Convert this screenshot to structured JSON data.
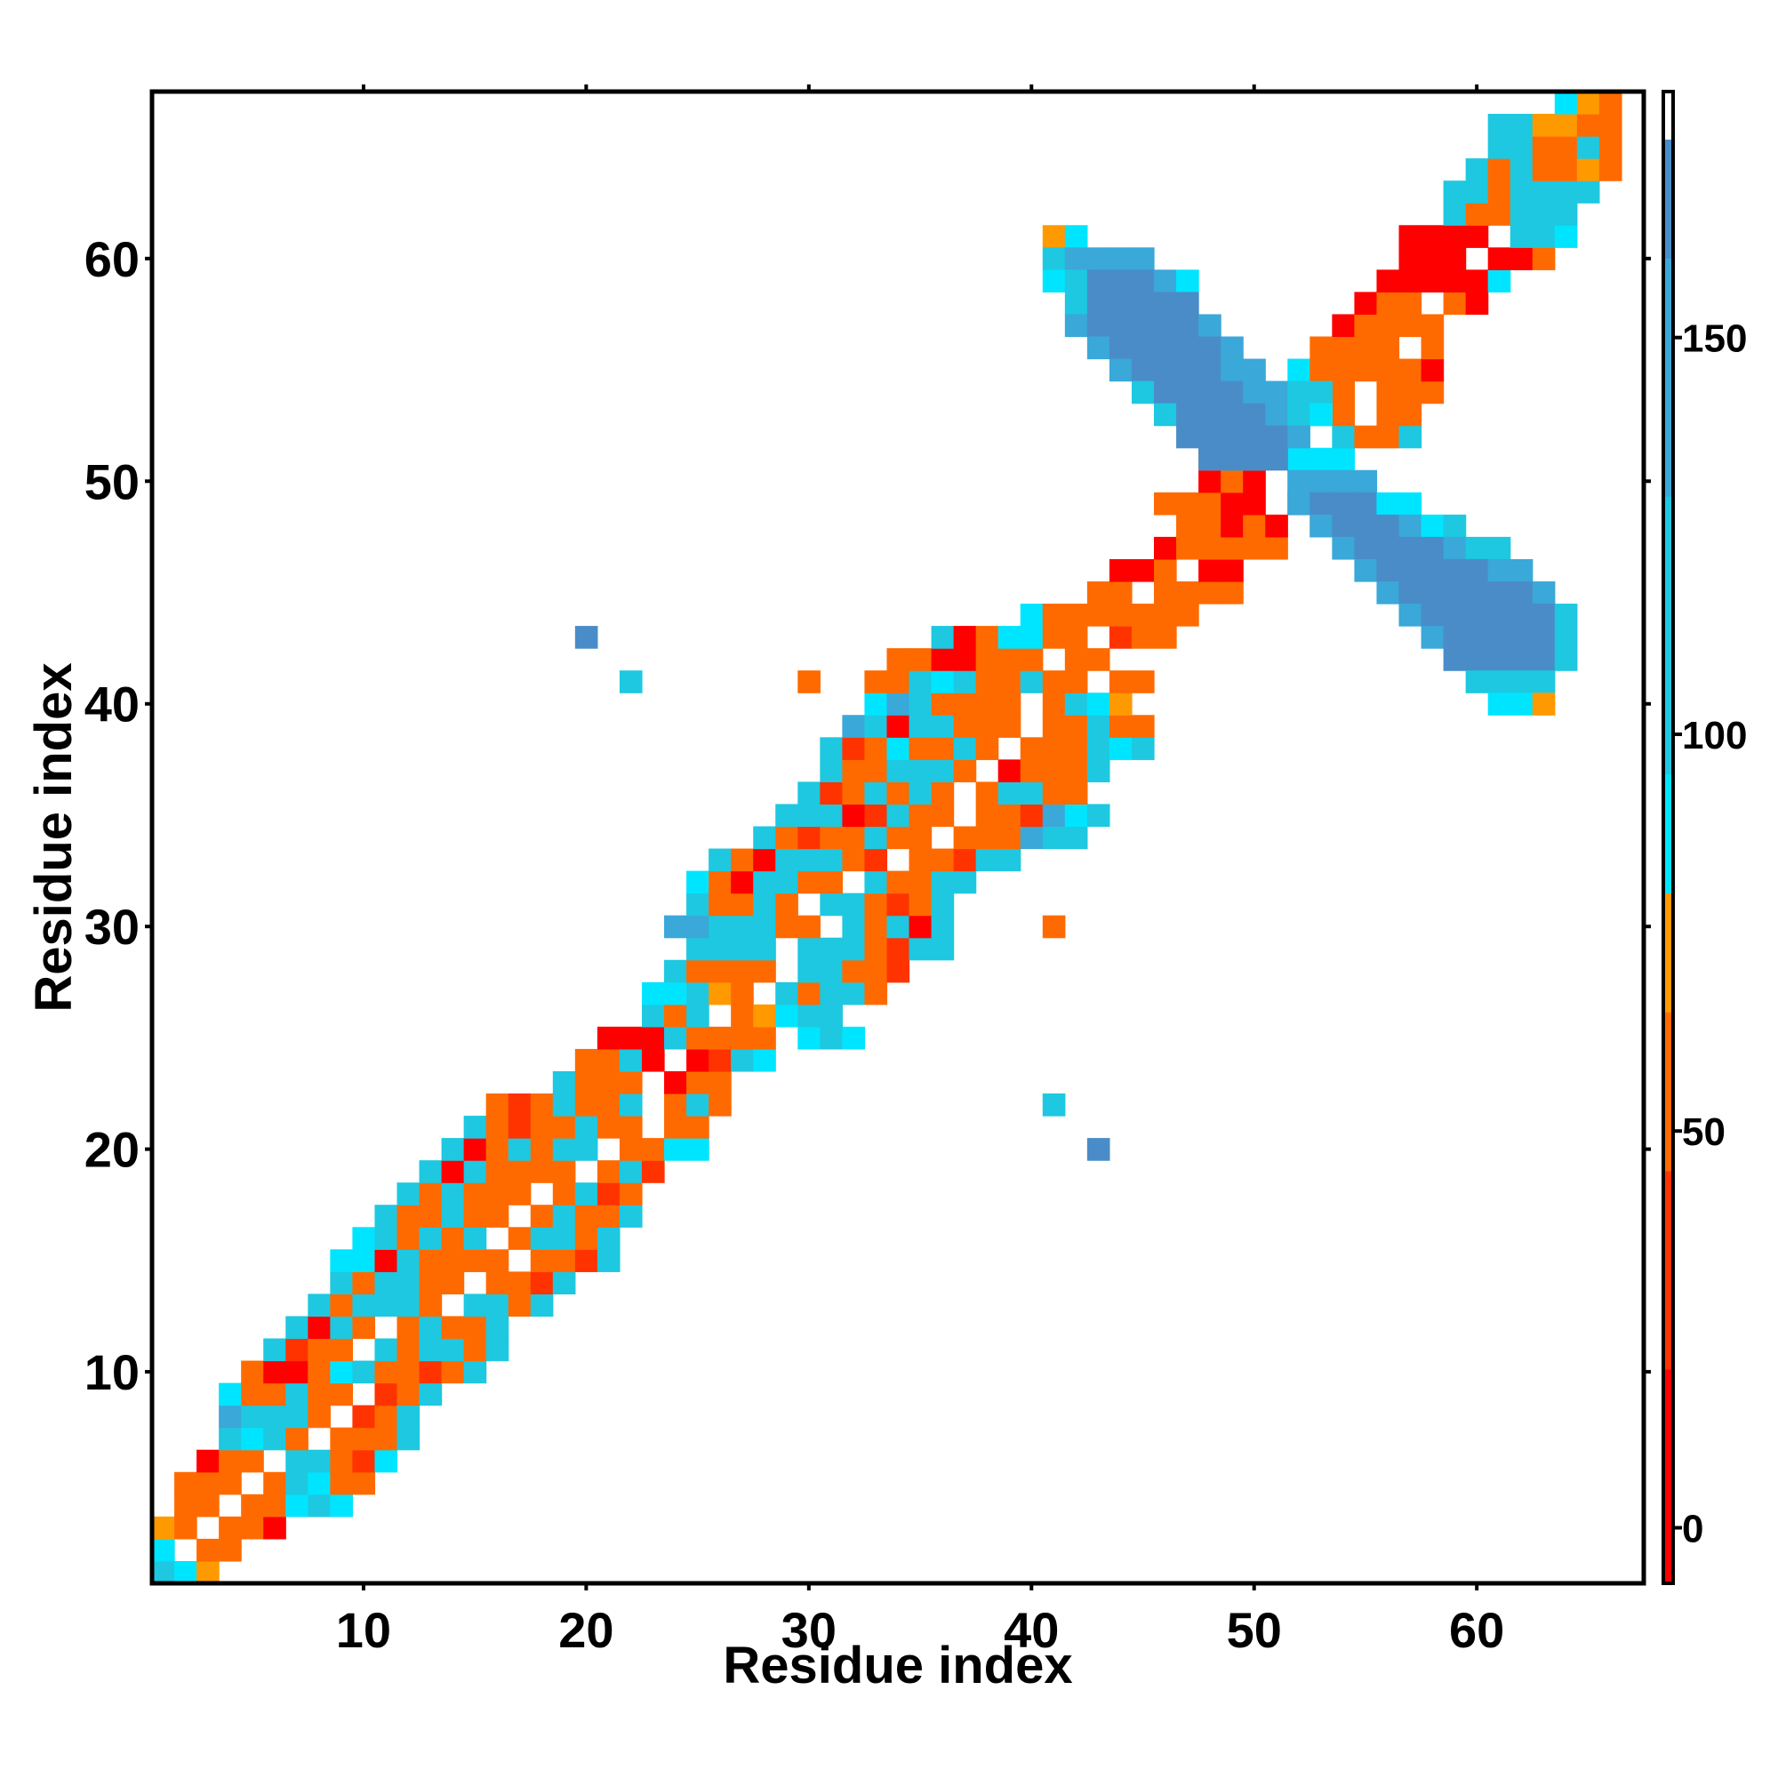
{
  "chart_data": {
    "type": "heatmap",
    "title": "",
    "xlabel": "Residue index",
    "ylabel": "Residue index",
    "xlim": [
      0.5,
      67.5
    ],
    "ylim": [
      0.5,
      67.5
    ],
    "xticks": [
      10,
      20,
      30,
      40,
      50,
      60
    ],
    "yticks": [
      10,
      20,
      30,
      40,
      50,
      60
    ],
    "grid": false,
    "colorbar": {
      "range": [
        -7,
        181
      ],
      "ticks": [
        0,
        50,
        100,
        150
      ],
      "stops": [
        {
          "from": -7,
          "to": 20,
          "color": "#ff0000"
        },
        {
          "from": 20,
          "to": 45,
          "color": "#ff3300"
        },
        {
          "from": 45,
          "to": 65,
          "color": "#ff6a00"
        },
        {
          "from": 65,
          "to": 80,
          "color": "#ff9900"
        },
        {
          "from": 80,
          "to": 95,
          "color": "#00e5ff"
        },
        {
          "from": 95,
          "to": 130,
          "color": "#1ec8e0"
        },
        {
          "from": 130,
          "to": 160,
          "color": "#3aa8d8"
        },
        {
          "from": 160,
          "to": 175,
          "color": "#4a8cc8"
        },
        {
          "from": 175,
          "to": 181,
          "color": "#ffffff"
        }
      ]
    },
    "value_key": {
      "R": 5,
      "r": 35,
      "O": 55,
      "o": 72,
      "C": 88,
      "c": 110,
      "l": 140,
      "B": 165
    },
    "rows": [
      {
        "y": 1,
        "x0": 1,
        "cells": "cCo"
      },
      {
        "y": 2,
        "x0": 1,
        "cells": "C.OO"
      },
      {
        "y": 3,
        "x0": 1,
        "cells": "oO.OOR"
      },
      {
        "y": 4,
        "x0": 2,
        "cells": "OO.OOCcC"
      },
      {
        "y": 5,
        "x0": 2,
        "cells": "OOO.OcCOO"
      },
      {
        "y": 6,
        "x0": 3,
        "cells": "ROO.ccOrC"
      },
      {
        "y": 7,
        "x0": 4,
        "cells": "cCcO.OOOc"
      },
      {
        "y": 8,
        "x0": 4,
        "cells": "lcccO.rOc"
      },
      {
        "y": 9,
        "x0": 4,
        "cells": "COOcOO.rOc"
      },
      {
        "y": 10,
        "x0": 5,
        "cells": "ORROCcOOrOc"
      },
      {
        "y": 11,
        "x0": 6,
        "cells": "crOO.cOccOc"
      },
      {
        "y": 12,
        "x0": 7,
        "cells": "cRcO.OcOOc"
      },
      {
        "y": 13,
        "x0": 8,
        "cells": "cOcccO.ccOc"
      },
      {
        "y": 14,
        "x0": 9,
        "cells": "cOccOO.OOrc"
      },
      {
        "y": 15,
        "x0": 9,
        "cells": "CCRcOOOO.OOrc"
      },
      {
        "y": 16,
        "x0": 10,
        "cells": "CcOcOc.OccOc"
      },
      {
        "y": 17,
        "x0": 11,
        "cells": "cOOcOO.OcOOc"
      },
      {
        "y": 18,
        "x0": 12,
        "cells": "cOcOOO.OcrO"
      },
      {
        "y": 19,
        "x0": 13,
        "cells": "cRcOOOO.Ocr"
      },
      {
        "y": 20,
        "x0": 14,
        "cells": "cROcOcc.OOCC"
      },
      {
        "y": 21,
        "x0": 15,
        "cells": "cOrOOcOO.OO"
      },
      {
        "y": 22,
        "x0": 16,
        "cells": "OrOcOOc.OcO"
      },
      {
        "y": 23,
        "x0": 19,
        "cells": "cOOO.ROO"
      },
      {
        "y": 24,
        "x0": 20,
        "cells": "OOcR.RrcC"
      },
      {
        "y": 25,
        "x0": 21,
        "cells": "RRRcOOOO.CcC"
      },
      {
        "y": 26,
        "x0": 23,
        "cells": "cOc.OoCcc"
      },
      {
        "y": 27,
        "x0": 23,
        "cells": "CCcoO.cOccO"
      },
      {
        "y": 28,
        "x0": 24,
        "cells": "cOOOO.ccOOr"
      },
      {
        "y": 29,
        "x0": 25,
        "cells": "cccc.cccOrcc"
      },
      {
        "y": 30,
        "x0": 24,
        "cells": "llcccOO.cOcRc"
      },
      {
        "y": 31,
        "x0": 25,
        "cells": "cOOcO.ccOrOc"
      },
      {
        "y": 32,
        "x0": 25,
        "cells": "CORccOO.cOOcc"
      },
      {
        "y": 33,
        "x0": 26,
        "cells": "cORcccOr.OOrcc"
      },
      {
        "y": 34,
        "x0": 28,
        "cells": "cOrOOcOO.OOOlcc"
      },
      {
        "y": 35,
        "x0": 29,
        "cells": "cccRrcOO.OOrlCc"
      },
      {
        "y": 36,
        "x0": 30,
        "cells": "crOcOcO.OccOO"
      },
      {
        "y": 37,
        "x0": 31,
        "cells": "cOOcccO.ROOOc"
      },
      {
        "y": 38,
        "x0": 31,
        "cells": "crOCOOcO.OOOcCc"
      },
      {
        "y": 39,
        "x0": 32,
        "cells": "lcRccOOO.OOcOO"
      },
      {
        "y": 40,
        "x0": 33,
        "cells": "ClcOOOO.OcCo"
      },
      {
        "y": 41,
        "x0": 33,
        "cells": "OOcCcOOcOO.OO"
      },
      {
        "y": 42,
        "x0": 34,
        "cells": "OORROOO.OO"
      },
      {
        "y": 43,
        "x0": 36,
        "cells": "cROCCOO.rOO"
      },
      {
        "y": 44,
        "x0": 40,
        "cells": "COOOOOOO"
      },
      {
        "y": 45,
        "x0": 43,
        "cells": "OO.OOOO"
      },
      {
        "y": 46,
        "x0": 44,
        "cells": "RRO.RR"
      },
      {
        "y": 47,
        "x0": 46,
        "cells": "ROOOOO"
      },
      {
        "y": 48,
        "x0": 47,
        "cells": "OOROR.OO"
      },
      {
        "y": 49,
        "x0": 46,
        "cells": "OOORR.RC"
      },
      {
        "y": 50,
        "x0": 48,
        "cells": "ROR.CCC"
      },
      {
        "y": 51,
        "x0": 48,
        "cells": "OCC.CCC"
      },
      {
        "y": 52,
        "x0": 49,
        "cells": "lCcC.cOOc"
      },
      {
        "y": 53,
        "x0": 50,
        "cells": "cCOcO.OO"
      },
      {
        "y": 54,
        "x0": 51,
        "cells": "cOOO.OOO"
      },
      {
        "y": 55,
        "x0": 52,
        "cells": "COOOOOR"
      },
      {
        "y": 56,
        "x0": 53,
        "cells": "OOOO.O"
      },
      {
        "y": 57,
        "x0": 54,
        "cells": "ROOOO"
      },
      {
        "y": 58,
        "x0": 55,
        "cells": "ROO.OR"
      },
      {
        "y": 59,
        "x0": 56,
        "cells": "RRRRRC"
      },
      {
        "y": 60,
        "x0": 57,
        "cells": "RRR.RRO"
      },
      {
        "y": 61,
        "x0": 57,
        "cells": "RRRR.ccC"
      },
      {
        "y": 62,
        "x0": 59,
        "cells": "cOOccc"
      },
      {
        "y": 63,
        "x0": 59,
        "cells": "ccOcccc"
      },
      {
        "y": 64,
        "x0": 60,
        "cells": "cOcOOoO"
      },
      {
        "y": 65,
        "x0": 61,
        "cells": "ccOOcO"
      },
      {
        "y": 66,
        "x0": 61,
        "cells": "ccooOO"
      },
      {
        "y": 67,
        "x0": 64,
        "cells": "CoO"
      }
    ],
    "off_diagonal": [
      {
        "x": 41,
        "y": 61,
        "cells": "oC"
      },
      {
        "x": 41,
        "y": 60,
        "cells": "cllll"
      },
      {
        "x": 41,
        "y": 59,
        "cells": "CcBBBlC"
      },
      {
        "x": 42,
        "y": 58,
        "cells": "cBBBBB"
      },
      {
        "x": 42,
        "y": 57,
        "cells": "lBBBBBl"
      },
      {
        "x": 43,
        "y": 56,
        "cells": "lBBBBBl"
      },
      {
        "x": 44,
        "y": 55,
        "cells": "lBBBBll"
      },
      {
        "x": 45,
        "y": 54,
        "cells": "cBBBBllcc"
      },
      {
        "x": 46,
        "y": 53,
        "cells": "cBBBBlcC"
      },
      {
        "x": 47,
        "y": 52,
        "cells": "BBBBBl"
      },
      {
        "x": 48,
        "y": 51,
        "cells": "BBBB"
      },
      {
        "x": 52,
        "y": 50,
        "cells": "llll"
      },
      {
        "x": 52,
        "y": 49,
        "cells": "lBBBCC"
      },
      {
        "x": 53,
        "y": 48,
        "cells": "lBBBlCc"
      },
      {
        "x": 54,
        "y": 47,
        "cells": "lBBBBlcc"
      },
      {
        "x": 55,
        "y": 46,
        "cells": "lBBBBBll"
      },
      {
        "x": 56,
        "y": 45,
        "cells": "lBBBBBBl"
      },
      {
        "x": 57,
        "y": 44,
        "cells": "lBBBBBBc"
      },
      {
        "x": 58,
        "y": 43,
        "cells": "lBBBBBc"
      },
      {
        "x": 59,
        "y": 42,
        "cells": "BBBBBc"
      },
      {
        "x": 60,
        "y": 41,
        "cells": "cccc"
      },
      {
        "x": 61,
        "y": 40,
        "cells": "CCo"
      },
      {
        "x": 20,
        "y": 43,
        "cells": "B"
      },
      {
        "x": 22,
        "y": 41,
        "cells": "c"
      },
      {
        "x": 30,
        "y": 41,
        "cells": "O"
      },
      {
        "x": 41,
        "y": 30,
        "cells": "O"
      },
      {
        "x": 41,
        "y": 22,
        "cells": "c"
      },
      {
        "x": 43,
        "y": 20,
        "cells": "B"
      }
    ]
  }
}
